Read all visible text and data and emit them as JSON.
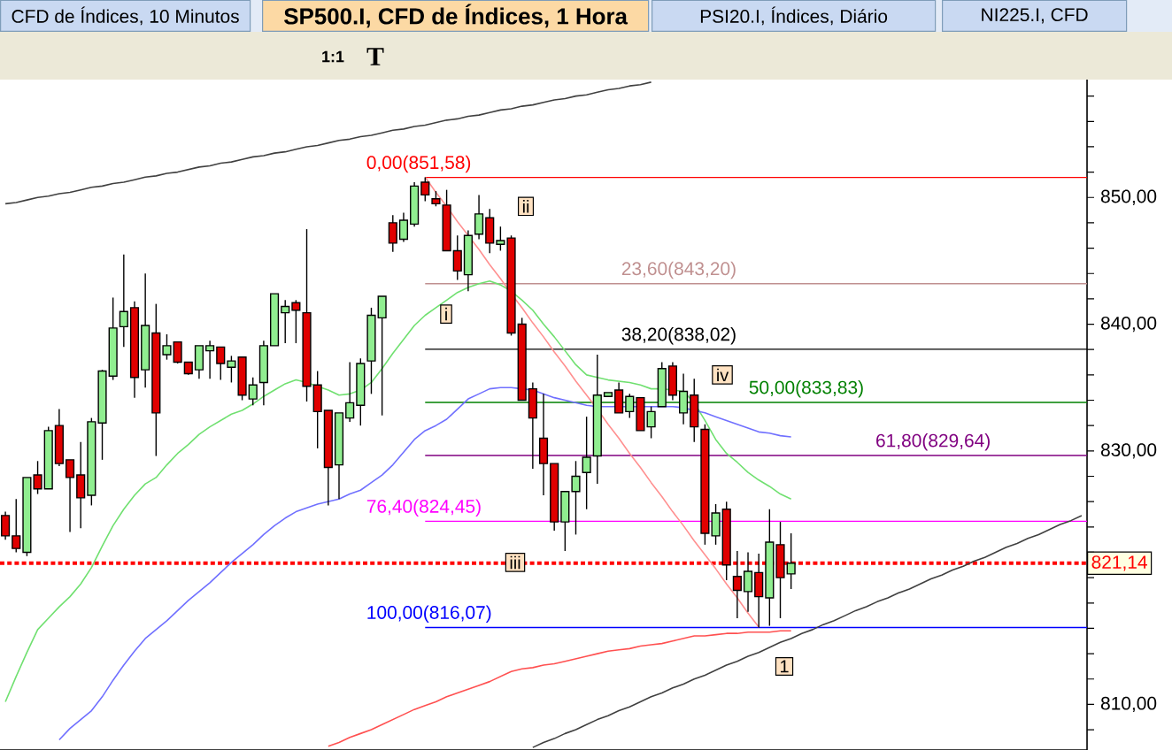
{
  "chart_data": {
    "type": "candlestick",
    "title": "SP500.I, CFD de Índices, 1 Hora",
    "categories": [
      null,
      null,
      null,
      null,
      null,
      null,
      null,
      null,
      null,
      null,
      null,
      null,
      null,
      null,
      null,
      null,
      null,
      null,
      null,
      null,
      null,
      null,
      null,
      null,
      null,
      null,
      null,
      null,
      null,
      null,
      null,
      null,
      null,
      null,
      null,
      null,
      null,
      null,
      null,
      null,
      null,
      null,
      null,
      null,
      null,
      null,
      null,
      null,
      null,
      null,
      null,
      null,
      null,
      null,
      null,
      null,
      null,
      null,
      null,
      null,
      null,
      null,
      null,
      null,
      null,
      null,
      null,
      null,
      null,
      null,
      null,
      null,
      null,
      null,
      null,
      null,
      null,
      null,
      null,
      null,
      null,
      null,
      null,
      null,
      null,
      null,
      null,
      null,
      null,
      null,
      null,
      null,
      null,
      null,
      null,
      null,
      null,
      null,
      null,
      null,
      null
    ],
    "ohlc": [
      [
        824.9,
        825.2,
        823.0,
        823.3
      ],
      [
        823.3,
        826.2,
        822.0,
        822.3
      ],
      [
        822.0,
        827.9,
        821.7,
        827.9
      ],
      [
        828.1,
        829.2,
        826.6,
        827.0
      ],
      [
        827.0,
        831.9,
        827.0,
        831.6
      ],
      [
        832.0,
        833.3,
        828.8,
        829.0
      ],
      [
        829.3,
        829.3,
        823.6,
        827.9
      ],
      [
        828.1,
        830.7,
        823.9,
        826.3
      ],
      [
        826.5,
        832.6,
        825.7,
        832.3
      ],
      [
        832.2,
        836.4,
        829.3,
        836.3
      ],
      [
        835.9,
        842.1,
        835.6,
        839.7
      ],
      [
        839.8,
        845.5,
        838.2,
        841.0
      ],
      [
        841.3,
        841.8,
        834.2,
        835.8
      ],
      [
        836.4,
        844.0,
        835.0,
        839.9
      ],
      [
        839.3,
        841.6,
        829.6,
        833.0
      ],
      [
        837.6,
        839.2,
        837.2,
        838.3
      ],
      [
        838.6,
        838.6,
        836.9,
        837.0
      ],
      [
        837.0,
        837.0,
        836.0,
        836.1
      ],
      [
        836.4,
        838.3,
        835.7,
        838.3
      ],
      [
        837.9,
        838.7,
        835.7,
        838.3
      ],
      [
        838.2,
        838.2,
        835.6,
        836.9
      ],
      [
        836.6,
        837.5,
        835.4,
        837.1
      ],
      [
        837.4,
        837.4,
        834.0,
        834.4
      ],
      [
        834.1,
        835.8,
        833.6,
        835.2
      ],
      [
        835.4,
        838.7,
        833.6,
        838.3
      ],
      [
        838.3,
        842.4,
        838.3,
        842.4
      ],
      [
        840.9,
        841.9,
        838.5,
        841.4
      ],
      [
        841.7,
        841.9,
        838.5,
        841.1
      ],
      [
        840.9,
        847.5,
        833.9,
        835.1
      ],
      [
        835.2,
        836.3,
        830.2,
        833.1
      ],
      [
        833.2,
        833.2,
        825.7,
        828.7
      ],
      [
        828.9,
        833.0,
        826.2,
        833.0
      ],
      [
        832.6,
        837.0,
        832.3,
        833.8
      ],
      [
        833.6,
        837.3,
        832.0,
        836.9
      ],
      [
        837.1,
        841.3,
        834.5,
        840.7
      ],
      [
        840.5,
        842.2,
        832.8,
        842.2
      ],
      [
        848.0,
        848.6,
        845.7,
        846.4
      ],
      [
        846.7,
        848.8,
        846.5,
        848.2
      ],
      [
        847.9,
        851.2,
        847.7,
        850.9
      ],
      [
        851.2,
        851.58,
        849.7,
        850.2
      ],
      [
        849.9,
        850.5,
        849.3,
        849.5
      ],
      [
        849.4,
        850.6,
        845.8,
        845.8
      ],
      [
        845.8,
        847.0,
        843.5,
        844.2
      ],
      [
        843.9,
        847.4,
        842.6,
        847.0
      ],
      [
        847.1,
        850.2,
        846.7,
        848.7
      ],
      [
        848.4,
        849.1,
        845.6,
        846.4
      ],
      [
        846.3,
        847.7,
        845.8,
        846.6
      ],
      [
        846.8,
        847.0,
        839.1,
        839.3
      ],
      [
        840.0,
        840.5,
        834.0,
        834.0
      ],
      [
        834.9,
        835.4,
        828.6,
        832.6
      ],
      [
        831.0,
        834.5,
        826.5,
        829.0
      ],
      [
        829.0,
        829.0,
        823.7,
        824.4
      ],
      [
        824.4,
        826.8,
        822.1,
        826.8
      ],
      [
        826.8,
        829.2,
        823.4,
        828.0
      ],
      [
        828.3,
        832.7,
        825.4,
        829.5
      ],
      [
        829.6,
        837.6,
        827.4,
        834.4
      ],
      [
        834.3,
        834.6,
        834.3,
        834.6
      ],
      [
        834.8,
        835.4,
        833.0,
        833.0
      ],
      [
        833.1,
        834.5,
        832.6,
        834.3
      ],
      [
        834.2,
        834.2,
        831.6,
        831.6
      ],
      [
        831.9,
        833.5,
        831.0,
        833.1
      ],
      [
        833.5,
        837.0,
        833.5,
        836.5
      ],
      [
        836.7,
        837.0,
        834.0,
        834.4
      ],
      [
        833.0,
        836.1,
        832.1,
        834.7
      ],
      [
        834.4,
        835.7,
        830.7,
        831.9
      ],
      [
        831.7,
        832.1,
        822.6,
        823.5
      ],
      [
        823.3,
        825.8,
        822.6,
        825.1
      ],
      [
        825.4,
        826.0,
        819.8,
        821.0
      ],
      [
        820.1,
        822.1,
        816.8,
        819.0
      ],
      [
        818.9,
        822.0,
        817.3,
        820.5
      ],
      [
        820.4,
        821.9,
        816.07,
        818.5
      ],
      [
        818.4,
        825.4,
        816.2,
        822.8
      ],
      [
        822.6,
        824.4,
        816.8,
        820.0
      ],
      [
        820.3,
        823.5,
        819.1,
        821.14
      ],
      null,
      null,
      null,
      null,
      null,
      null,
      null,
      null,
      null,
      null,
      null,
      null,
      null,
      null,
      null,
      null,
      null,
      null,
      null,
      null,
      null,
      null,
      null,
      null,
      null,
      null,
      null
    ],
    "colors": [
      "#e00000",
      "#e00000",
      "#90ee90",
      "#e00000",
      "#90ee90",
      "#e00000",
      "#e00000",
      "#e00000",
      "#90ee90",
      "#90ee90",
      "#90ee90",
      "#90ee90",
      "#e00000",
      "#90ee90",
      "#e00000",
      "#90ee90",
      "#e00000",
      "#e00000",
      "#90ee90",
      "#90ee90",
      "#e00000",
      "#90ee90",
      "#e00000",
      "#90ee90",
      "#90ee90",
      "#90ee90",
      "#90ee90",
      "#e00000",
      "#e00000",
      "#e00000",
      "#e00000",
      "#90ee90",
      "#90ee90",
      "#90ee90",
      "#90ee90",
      "#90ee90",
      "#e00000",
      "#90ee90",
      "#90ee90",
      "#e00000",
      "#e00000",
      "#e00000",
      "#e00000",
      "#90ee90",
      "#90ee90",
      "#e00000",
      "#90ee90",
      "#e00000",
      "#e00000",
      "#e00000",
      "#e00000",
      "#e00000",
      "#90ee90",
      "#90ee90",
      "#90ee90",
      "#90ee90",
      "#90ee90",
      "#e00000",
      "#90ee90",
      "#e00000",
      "#90ee90",
      "#90ee90",
      "#e00000",
      "#90ee90",
      "#e00000",
      "#e00000",
      "#90ee90",
      "#e00000",
      "#e00000",
      "#90ee90",
      "#e00000",
      "#90ee90",
      "#e00000",
      "#90ee90",
      null,
      null,
      null,
      null,
      null,
      null,
      null,
      null,
      null,
      null,
      null,
      null,
      null,
      null,
      null,
      null,
      null,
      null,
      null,
      null,
      null,
      null,
      null,
      null,
      null,
      null,
      null
    ],
    "series": [
      {
        "type": "line",
        "color": "#70e070",
        "values": [
          810.2,
          812.2,
          814.1,
          815.9,
          816.8,
          817.7,
          818.5,
          819.5,
          820.8,
          822.5,
          824.1,
          825.4,
          826.5,
          827.4,
          827.9,
          828.9,
          829.8,
          830.5,
          831.3,
          831.9,
          832.4,
          832.9,
          833.2,
          833.7,
          834.3,
          834.8,
          835.3,
          835.6,
          835.4,
          835.1,
          834.8,
          834.4,
          834.5,
          834.8,
          835.4,
          836.5,
          837.7,
          838.8,
          839.9,
          840.7,
          841.3,
          841.9,
          842.5,
          842.9,
          843.2,
          843.4,
          843.1,
          842.6,
          841.9,
          841.1,
          840.0,
          839.0,
          837.9,
          836.8,
          836.0,
          835.8,
          835.6,
          835.5,
          835.4,
          835.2,
          834.9,
          834.9,
          834.8,
          834.7,
          833.8,
          832.4,
          830.9,
          829.8,
          829.1,
          828.3,
          827.7,
          827.2,
          826.6,
          826.2,
          null,
          null,
          null,
          null,
          null,
          null,
          null,
          null,
          null,
          null,
          null,
          null,
          null,
          null,
          null,
          null,
          null,
          null,
          null,
          null,
          null,
          null,
          null,
          null,
          null,
          null,
          null
        ]
      },
      {
        "type": "line",
        "color": "#7070ff",
        "values": [
          null,
          null,
          null,
          null,
          null,
          807.2,
          808.1,
          808.8,
          809.5,
          810.6,
          811.9,
          813.1,
          814.2,
          815.2,
          815.9,
          816.6,
          817.4,
          818.2,
          818.9,
          819.6,
          820.4,
          821.2,
          821.9,
          822.6,
          823.4,
          824.1,
          824.7,
          825.2,
          825.5,
          825.8,
          826.0,
          826.2,
          826.6,
          826.9,
          827.5,
          828.1,
          828.9,
          829.9,
          830.9,
          831.6,
          832.0,
          832.5,
          833.3,
          834.1,
          834.5,
          834.9,
          835.0,
          835.0,
          834.9,
          834.8,
          834.5,
          834.2,
          834.0,
          833.8,
          833.6,
          833.5,
          833.5,
          833.5,
          833.5,
          833.5,
          833.5,
          833.5,
          833.5,
          833.4,
          833.2,
          833.0,
          832.7,
          832.4,
          832.1,
          831.8,
          831.5,
          831.4,
          831.2,
          831.1,
          null,
          null,
          null,
          null,
          null,
          null,
          null,
          null,
          null,
          null,
          null,
          null,
          null,
          null,
          null,
          null,
          null,
          null,
          null,
          null,
          null,
          null,
          null,
          null,
          null,
          null,
          null
        ]
      },
      {
        "type": "line",
        "color": "#ff5050",
        "values": [
          null,
          null,
          null,
          null,
          null,
          null,
          null,
          null,
          null,
          null,
          null,
          null,
          null,
          null,
          null,
          null,
          null,
          null,
          null,
          null,
          null,
          null,
          null,
          null,
          null,
          null,
          null,
          null,
          null,
          null,
          806.7,
          807.0,
          807.4,
          807.7,
          808.0,
          808.4,
          808.8,
          809.2,
          809.6,
          809.9,
          810.2,
          810.6,
          810.9,
          811.2,
          811.5,
          811.8,
          812.2,
          812.6,
          812.8,
          812.9,
          813.1,
          813.2,
          813.4,
          813.6,
          813.8,
          814.0,
          814.2,
          814.3,
          814.4,
          814.6,
          814.7,
          814.8,
          815.0,
          815.2,
          815.4,
          815.4,
          815.5,
          815.6,
          815.6,
          815.7,
          815.7,
          815.7,
          815.8,
          815.8,
          null,
          null,
          null,
          null,
          null,
          null,
          null,
          null,
          null,
          null,
          null,
          null,
          null,
          null,
          null,
          null,
          null,
          null,
          null,
          null,
          null,
          null,
          null,
          null,
          null,
          null,
          null
        ]
      },
      {
        "type": "line",
        "color": "#404040",
        "values": [
          849.5,
          849.6,
          849.8,
          850.0,
          850.1,
          850.3,
          850.4,
          850.6,
          850.8,
          850.9,
          851.1,
          851.2,
          851.4,
          851.6,
          851.7,
          851.9,
          852.0,
          852.2,
          852.4,
          852.5,
          852.7,
          852.8,
          853.0,
          853.2,
          853.3,
          853.5,
          853.6,
          853.8,
          854.0,
          854.1,
          854.3,
          854.5,
          854.6,
          854.8,
          854.9,
          855.1,
          855.3,
          855.4,
          855.6,
          855.7,
          855.9,
          856.1,
          856.2,
          856.4,
          856.5,
          856.7,
          856.9,
          857.0,
          857.2,
          857.3,
          857.5,
          857.7,
          857.8,
          858.0,
          858.1,
          858.3,
          858.5,
          858.6,
          858.8,
          858.9,
          859.1,
          null,
          null,
          null,
          null,
          null,
          null,
          null,
          null,
          null,
          null,
          null,
          null,
          null,
          null,
          null,
          null,
          null,
          null,
          null,
          null,
          null,
          null,
          null,
          null,
          null,
          null,
          null,
          null,
          null,
          null,
          null,
          null,
          null,
          null,
          null,
          null,
          null,
          null,
          null,
          null
        ]
      },
      {
        "type": "line",
        "color": "#404040",
        "values": [
          null,
          null,
          null,
          null,
          null,
          null,
          null,
          null,
          null,
          null,
          null,
          null,
          null,
          null,
          null,
          null,
          null,
          null,
          null,
          null,
          null,
          null,
          null,
          null,
          null,
          null,
          null,
          null,
          null,
          null,
          null,
          null,
          null,
          null,
          null,
          null,
          null,
          null,
          null,
          null,
          null,
          null,
          null,
          null,
          null,
          null,
          null,
          null,
          null,
          806.6,
          807.0,
          807.3,
          807.7,
          808.0,
          808.4,
          808.8,
          809.1,
          809.5,
          809.8,
          810.2,
          810.6,
          810.9,
          811.3,
          811.6,
          812.0,
          812.3,
          812.7,
          813.1,
          813.4,
          813.8,
          814.1,
          814.5,
          814.9,
          815.2,
          815.6,
          815.9,
          816.3,
          816.6,
          817.0,
          817.4,
          817.7,
          818.1,
          818.4,
          818.8,
          819.1,
          819.5,
          819.9,
          820.2,
          820.6,
          820.9,
          821.3,
          821.6,
          822.0,
          822.4,
          822.7,
          823.1,
          823.4,
          823.8,
          824.2,
          824.5,
          824.9
        ]
      },
      {
        "type": "line",
        "color": "#ff9090",
        "values": [
          null,
          null,
          null,
          null,
          null,
          null,
          null,
          null,
          null,
          null,
          null,
          null,
          null,
          null,
          null,
          null,
          null,
          null,
          null,
          null,
          null,
          null,
          null,
          null,
          null,
          null,
          null,
          null,
          null,
          null,
          null,
          null,
          null,
          null,
          null,
          null,
          null,
          null,
          null,
          851.6,
          850.4,
          849.3,
          848.1,
          847.0,
          845.9,
          844.7,
          843.6,
          842.4,
          841.3,
          840.1,
          839.0,
          837.8,
          836.7,
          835.5,
          834.4,
          833.3,
          832.1,
          831.0,
          829.8,
          828.7,
          827.5,
          826.4,
          825.2,
          824.1,
          822.9,
          821.8,
          820.7,
          819.5,
          818.4,
          817.2,
          816.1,
          null,
          null,
          null,
          null,
          null,
          null,
          null,
          null,
          null,
          null,
          null,
          null,
          null,
          null,
          null,
          null,
          null,
          null,
          null,
          null,
          null,
          null,
          null,
          null,
          null,
          null,
          null,
          null,
          null,
          null
        ]
      }
    ],
    "ylim": [
      806.4,
      859.3
    ],
    "yticks": [
      {
        "value": 808,
        "label": null
      },
      {
        "value": 810,
        "label": "810,00"
      },
      {
        "value": 812,
        "label": null
      },
      {
        "value": 814,
        "label": null
      },
      {
        "value": 816,
        "label": null
      },
      {
        "value": 818,
        "label": null
      },
      {
        "value": 820,
        "label": null
      },
      {
        "value": 822,
        "label": null
      },
      {
        "value": 824,
        "label": null
      },
      {
        "value": 826,
        "label": null
      },
      {
        "value": 828,
        "label": null
      },
      {
        "value": 830,
        "label": "830,00"
      },
      {
        "value": 832,
        "label": null
      },
      {
        "value": 834,
        "label": null
      },
      {
        "value": 836,
        "label": null
      },
      {
        "value": 838,
        "label": null
      },
      {
        "value": 840,
        "label": "840,00"
      },
      {
        "value": 842,
        "label": null
      },
      {
        "value": 844,
        "label": null
      },
      {
        "value": 846,
        "label": null
      },
      {
        "value": 848,
        "label": null
      },
      {
        "value": 850,
        "label": "850,00"
      },
      {
        "value": 852,
        "label": null
      },
      {
        "value": 854,
        "label": null
      },
      {
        "value": 856,
        "label": null
      },
      {
        "value": 858,
        "label": null
      }
    ],
    "tick_labels": "y",
    "ref_lines": [
      {
        "axis": "y",
        "value": 851.58,
        "label": "0,00(851,58)",
        "color": "#ff0000"
      },
      {
        "axis": "y",
        "value": 843.2,
        "label": "23,60(843,20)",
        "color": "#c09090"
      },
      {
        "axis": "y",
        "value": 838.02,
        "label": "38,20(838,02)",
        "color": "#000000"
      },
      {
        "axis": "y",
        "value": 833.83,
        "label": "50,00(833,83)",
        "color": "#008000"
      },
      {
        "axis": "y",
        "value": 829.64,
        "label": "61,80(829,64)",
        "color": "#800080"
      },
      {
        "axis": "y",
        "value": 824.45,
        "label": "76,40(824,45)",
        "color": "#ff00ff"
      },
      {
        "axis": "y",
        "value": 816.07,
        "label": "100,00(816,07)",
        "color": "#0000ff"
      },
      {
        "axis": "y",
        "value": 821.14,
        "label": "821,14",
        "color": "#ff0000",
        "line_style": "dotted"
      }
    ],
    "annotations": [
      {
        "text": "i",
        "y": 840.8
      },
      {
        "text": "ii",
        "y": 849.3
      },
      {
        "text": "iii",
        "y": 821.2
      },
      {
        "text": "iv",
        "y": 836.0
      },
      {
        "text": "1",
        "y": 813.0
      },
      "CFD de Índices, 10 Minutos",
      "PSI20.I, Índices, Diário",
      "NI225.I, CFD",
      "1:1",
      "T"
    ]
  }
}
